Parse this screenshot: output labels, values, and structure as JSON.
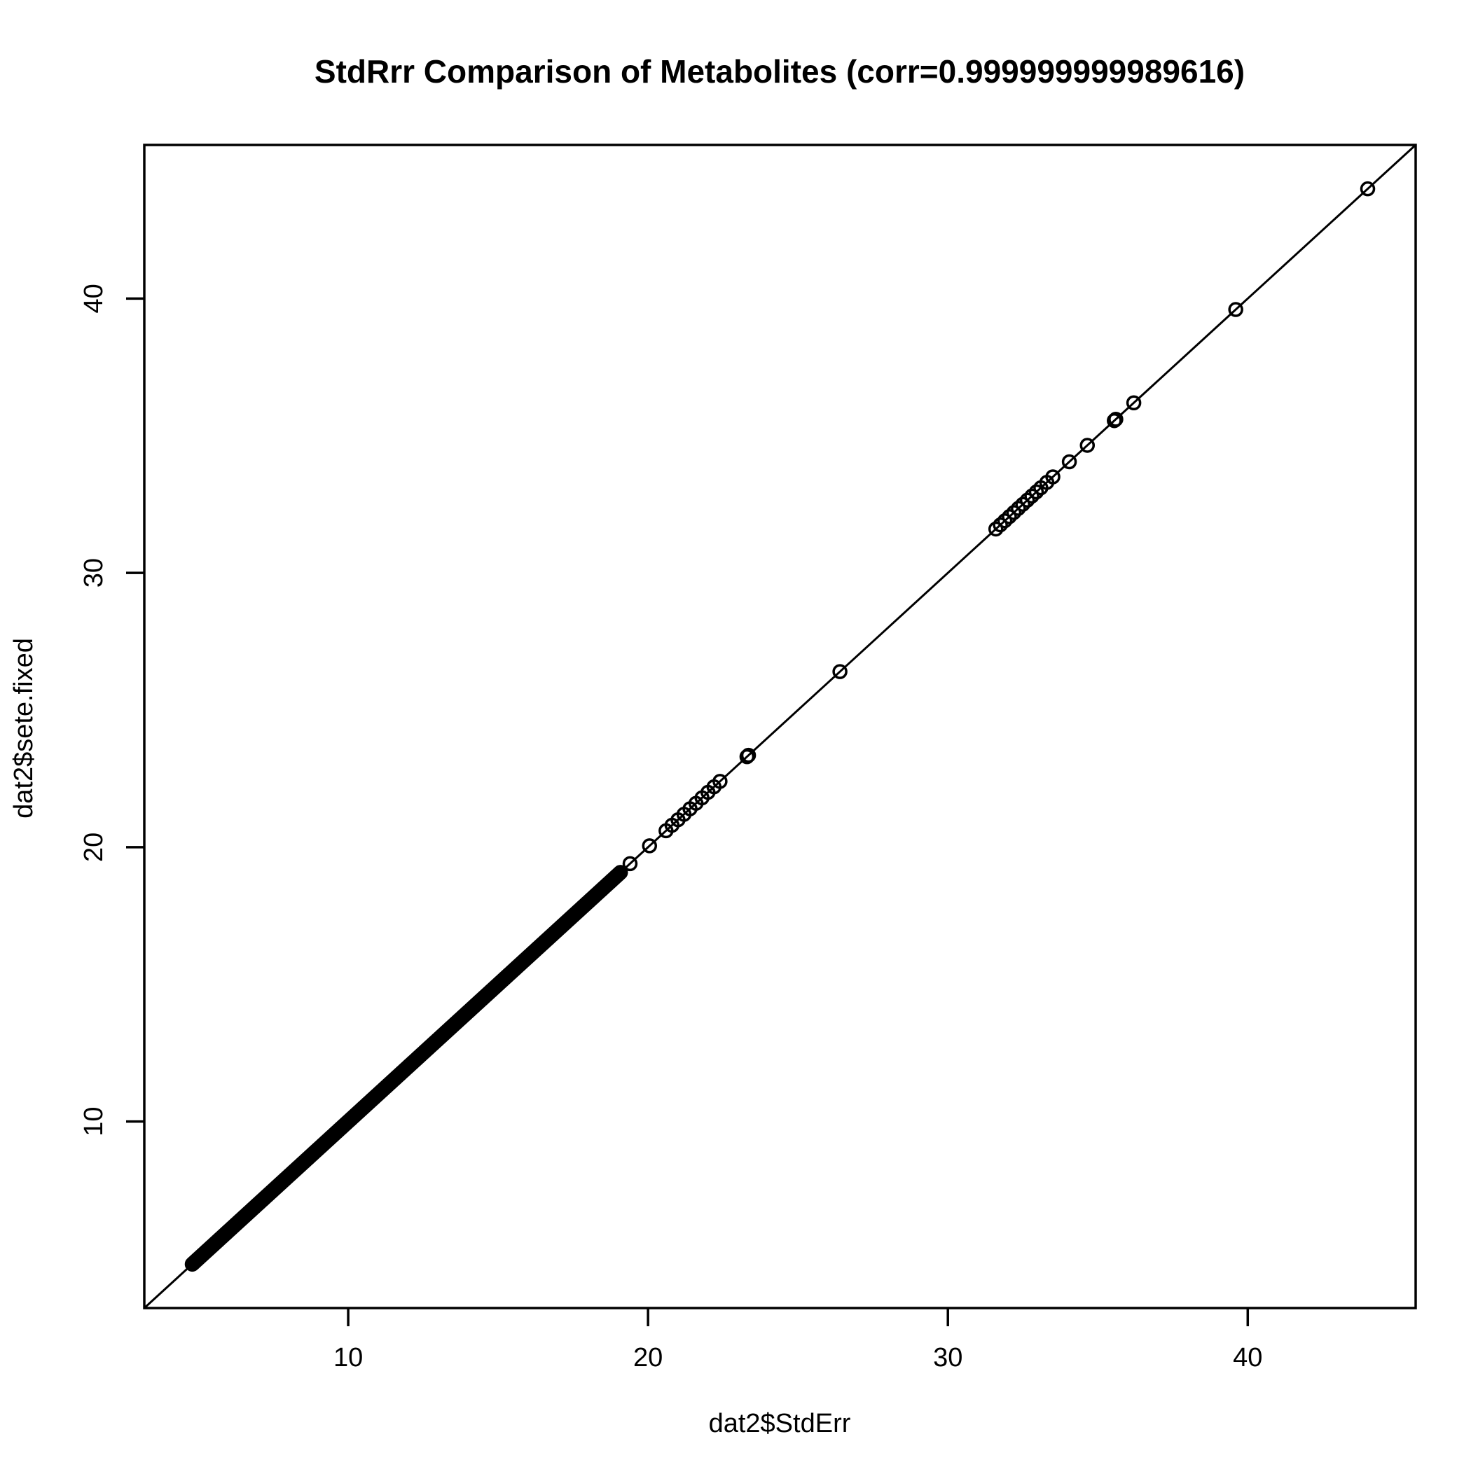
{
  "chart_data": {
    "type": "scatter",
    "title": "StdRrr Comparison of Metabolites (corr=0.999999999989616)",
    "xlabel": "dat2$StdErr",
    "ylabel": "dat2$sete.fixed",
    "xlim": [
      3.2,
      45.6
    ],
    "ylim": [
      3.2,
      45.6
    ],
    "x_ticks": [
      10,
      20,
      30,
      40
    ],
    "y_ticks": [
      10,
      20,
      30,
      40
    ],
    "grid": false,
    "legend": null,
    "reference_line": {
      "intercept": 0,
      "slope": 1
    },
    "marker": "open-circle",
    "color": "#000000",
    "dense_range": {
      "from": 4.8,
      "to": 19.1
    },
    "points": [
      {
        "x": 19.4,
        "y": 19.4
      },
      {
        "x": 20.05,
        "y": 20.05
      },
      {
        "x": 20.6,
        "y": 20.6
      },
      {
        "x": 20.8,
        "y": 20.8
      },
      {
        "x": 21.0,
        "y": 21.0
      },
      {
        "x": 21.2,
        "y": 21.2
      },
      {
        "x": 21.4,
        "y": 21.4
      },
      {
        "x": 21.6,
        "y": 21.6
      },
      {
        "x": 21.8,
        "y": 21.8
      },
      {
        "x": 22.0,
        "y": 22.0
      },
      {
        "x": 22.2,
        "y": 22.2
      },
      {
        "x": 22.4,
        "y": 22.4
      },
      {
        "x": 23.3,
        "y": 23.3
      },
      {
        "x": 23.35,
        "y": 23.35
      },
      {
        "x": 26.4,
        "y": 26.4
      },
      {
        "x": 31.6,
        "y": 31.6
      },
      {
        "x": 31.75,
        "y": 31.75
      },
      {
        "x": 31.9,
        "y": 31.9
      },
      {
        "x": 32.05,
        "y": 32.05
      },
      {
        "x": 32.2,
        "y": 32.2
      },
      {
        "x": 32.35,
        "y": 32.35
      },
      {
        "x": 32.5,
        "y": 32.5
      },
      {
        "x": 32.65,
        "y": 32.65
      },
      {
        "x": 32.8,
        "y": 32.8
      },
      {
        "x": 32.95,
        "y": 32.95
      },
      {
        "x": 33.1,
        "y": 33.1
      },
      {
        "x": 33.3,
        "y": 33.3
      },
      {
        "x": 33.5,
        "y": 33.5
      },
      {
        "x": 34.05,
        "y": 34.05
      },
      {
        "x": 34.65,
        "y": 34.65
      },
      {
        "x": 35.55,
        "y": 35.55
      },
      {
        "x": 35.6,
        "y": 35.6
      },
      {
        "x": 36.2,
        "y": 36.2
      },
      {
        "x": 39.6,
        "y": 39.6
      },
      {
        "x": 44.0,
        "y": 44.0
      }
    ]
  }
}
